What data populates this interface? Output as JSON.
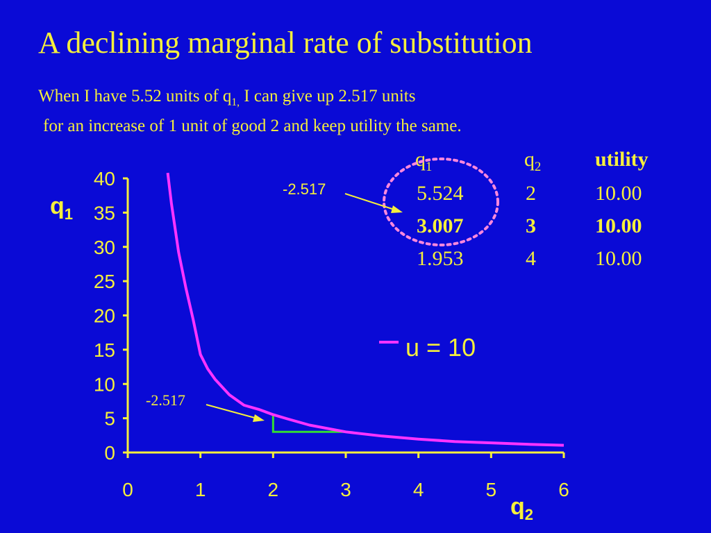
{
  "slide": {
    "title": "A declining marginal rate of substitution",
    "subtitle_part1": "When I have 5.52 units of q",
    "subtitle_sub": "1,",
    "subtitle_part2": " I can give up 2.517 units",
    "subtitle_line2": "for an increase of 1 unit of good 2 and keep utility the same."
  },
  "table": {
    "headers": [
      {
        "main": "q",
        "sub": "1"
      },
      {
        "main": "q",
        "sub": "2"
      },
      {
        "main": "utility",
        "sub": ""
      }
    ],
    "rows": [
      {
        "cells": [
          "5.524",
          "2",
          "10.00"
        ],
        "bold": false
      },
      {
        "cells": [
          "3.007",
          "3",
          "10.00"
        ],
        "bold": true
      },
      {
        "cells": [
          "1.953",
          "4",
          "10.00"
        ],
        "bold": false
      }
    ]
  },
  "annotations": {
    "table_arrow_label": "-2.517",
    "chart_arrow_label": "-2.517"
  },
  "colors": {
    "background": "#0a0ad6",
    "text": "#f5ef3c",
    "curve": "#ff33ff",
    "step": "#33dd33",
    "circle": "#ff88dd"
  },
  "chart_data": {
    "type": "line",
    "x": [
      0.55,
      0.6,
      0.7,
      0.8,
      0.9,
      1.0,
      1.1,
      1.2,
      1.4,
      1.6,
      1.8,
      2.0,
      2.2,
      2.5,
      3.0,
      3.5,
      4.0,
      4.5,
      5.0,
      5.5,
      6.0
    ],
    "series": [
      {
        "name": "u = 10",
        "values": [
          40.8,
          36.4,
          29.2,
          24.0,
          19.4,
          14.3,
          12.2,
          10.7,
          8.4,
          6.9,
          6.3,
          5.524,
          4.9,
          4.0,
          3.007,
          2.4,
          1.953,
          1.6,
          1.4,
          1.2,
          1.05
        ]
      }
    ],
    "step_marker": {
      "x_from": 2,
      "x_to": 3,
      "y_from": 5.524,
      "y_to": 3.007
    },
    "xticks": [
      0,
      1,
      2,
      3,
      4,
      5,
      6
    ],
    "yticks": [
      0,
      5,
      10,
      15,
      20,
      25,
      30,
      35,
      40
    ],
    "xlim": [
      0,
      6
    ],
    "ylim": [
      0,
      40
    ],
    "xlabel_main": "q",
    "xlabel_sub": "2",
    "ylabel_main": "q",
    "ylabel_sub": "1",
    "legend_label": "u = 10",
    "legend_position": "right",
    "grid": false
  }
}
